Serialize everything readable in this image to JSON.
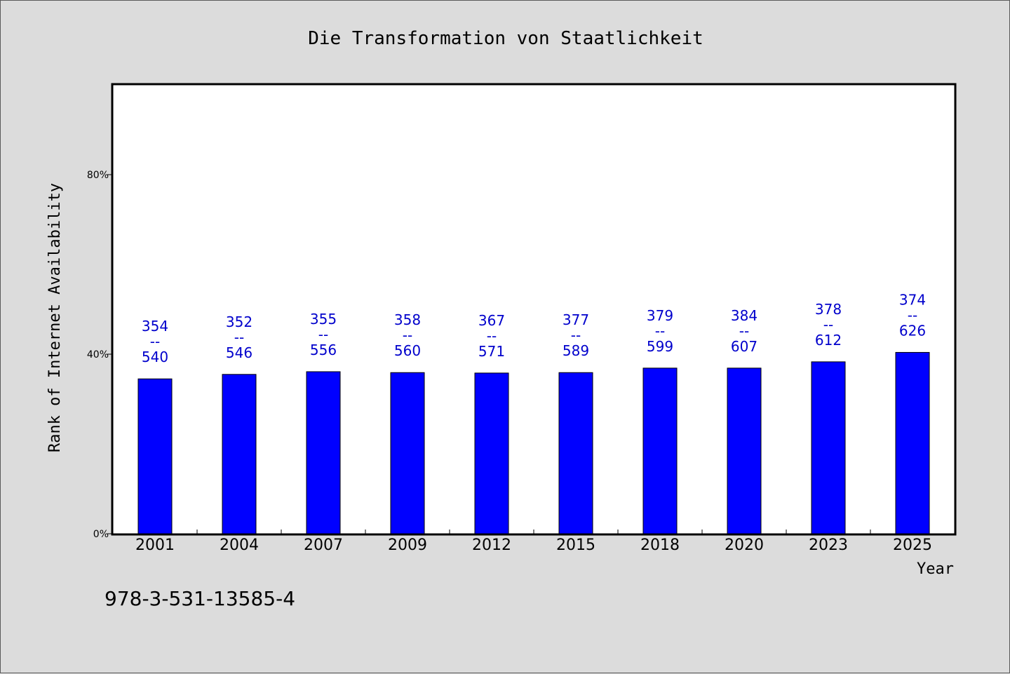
{
  "chart_data": {
    "type": "bar",
    "title": "Die Transformation von Staatlichkeit",
    "xlabel": "Year",
    "ylabel": "Rank of Internet Availability",
    "categories": [
      "2001",
      "2004",
      "2007",
      "2009",
      "2012",
      "2015",
      "2018",
      "2020",
      "2023",
      "2025"
    ],
    "values": [
      34.5,
      35.5,
      36.1,
      35.9,
      35.8,
      35.9,
      36.9,
      36.9,
      38.3,
      40.4
    ],
    "ylim": [
      0,
      100
    ],
    "yticks": [
      0,
      40,
      80
    ],
    "ytick_labels": [
      "0%",
      "40%",
      "80%"
    ],
    "labels_top": [
      "354",
      "352",
      "355",
      "358",
      "367",
      "377",
      "379",
      "384",
      "378",
      "374"
    ],
    "labels_bottom": [
      "540",
      "546",
      "556",
      "560",
      "571",
      "589",
      "599",
      "607",
      "612",
      "626"
    ],
    "label_separator": "--",
    "bar_color": "#0000ff",
    "label_color": "#0000cc",
    "grid": false,
    "legend": "none"
  },
  "footer_text": "978-3-531-13585-4"
}
